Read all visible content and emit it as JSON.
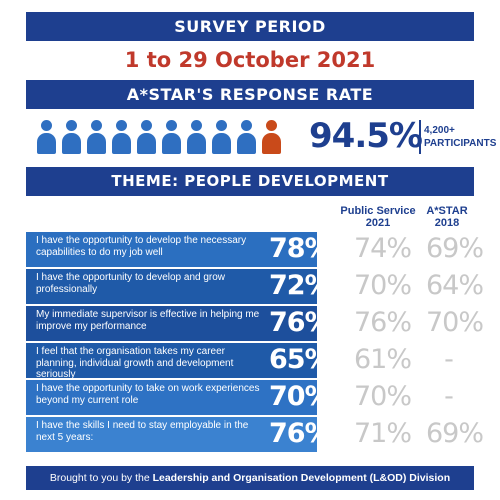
{
  "survey_period": {
    "title": "SURVEY PERIOD",
    "dates": "1 to 29 October 2021"
  },
  "response_rate": {
    "title": "A*STAR'S RESPONSE RATE",
    "value": "94.5%",
    "participants_line1": "4,200+",
    "participants_line2": "PARTICIPANTS",
    "icon_count": 10,
    "highlight_index": 9,
    "icon_color": "#2f6fc1",
    "highlight_color": "#c94a1a"
  },
  "theme": {
    "title": "THEME: PEOPLE DEVELOPMENT"
  },
  "columns": {
    "public_service": "Public Service",
    "public_service_year": "2021",
    "astar": "A*STAR",
    "astar_year": "2018"
  },
  "rows": [
    {
      "text": "I have the opportunity to develop the necessary capabilities to do my job well",
      "value": "78%",
      "public_service": "74%",
      "astar_2018": "69%"
    },
    {
      "text": "I have the opportunity to develop and grow professionally",
      "value": "72%",
      "public_service": "70%",
      "astar_2018": "64%"
    },
    {
      "text": "My immediate supervisor is effective in helping me improve my performance",
      "value": "76%",
      "public_service": "76%",
      "astar_2018": "70%"
    },
    {
      "text": "I feel that the organisation takes my career planning, individual growth and development seriously",
      "value": "65%",
      "public_service": "61%",
      "astar_2018": "-"
    },
    {
      "text": "I have the opportunity to take on work experiences beyond my current role",
      "value": "70%",
      "public_service": "70%",
      "astar_2018": "-"
    },
    {
      "text": "I have the skills I need to stay employable in the next 5 years:",
      "value": "76%",
      "public_service": "71%",
      "astar_2018": "69%"
    }
  ],
  "footer": {
    "prefix": "Brought to you by the ",
    "division": "Leadership and Organisation Development (L&OD) Division"
  },
  "colors": {
    "navy": "#1e3f8f",
    "accent_red": "#c0392b",
    "row_blue": "#2b6fc0",
    "compare_grey": "#c8c8c8"
  }
}
